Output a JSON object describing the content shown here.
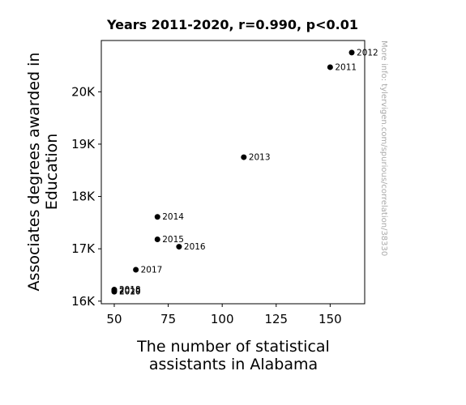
{
  "chart_data": {
    "type": "scatter",
    "title": "Years 2011-2020, r=0.990, p<0.01",
    "xlabel_lines": [
      "The number of statistical",
      "assistants in Alabama"
    ],
    "ylabel_lines": [
      "Associates degrees awarded in",
      "Education"
    ],
    "xlim": [
      44,
      166
    ],
    "ylim": [
      15950,
      20980
    ],
    "xticks": [
      {
        "value": 50,
        "label": "50"
      },
      {
        "value": 75,
        "label": "75"
      },
      {
        "value": 100,
        "label": "100"
      },
      {
        "value": 125,
        "label": "125"
      },
      {
        "value": 150,
        "label": "150"
      }
    ],
    "yticks": [
      {
        "value": 16000,
        "label": "16K"
      },
      {
        "value": 17000,
        "label": "17K"
      },
      {
        "value": 18000,
        "label": "18K"
      },
      {
        "value": 19000,
        "label": "19K"
      },
      {
        "value": 20000,
        "label": "20K"
      }
    ],
    "points": [
      {
        "label": "2011",
        "x": 150,
        "y": 20470
      },
      {
        "label": "2012",
        "x": 160,
        "y": 20750
      },
      {
        "label": "2013",
        "x": 110,
        "y": 18750
      },
      {
        "label": "2014",
        "x": 70,
        "y": 17610
      },
      {
        "label": "2015",
        "x": 70,
        "y": 17180
      },
      {
        "label": "2016",
        "x": 80,
        "y": 17040
      },
      {
        "label": "2017",
        "x": 60,
        "y": 16600
      },
      {
        "label": "2018",
        "x": 50,
        "y": 16220
      },
      {
        "label": "2019",
        "x": 50,
        "y": 16200
      },
      {
        "label": "2020",
        "x": 50,
        "y": 16180
      }
    ],
    "grid": false,
    "marker_color": "#000000",
    "watermark": "More info: tylervigen.com/spurious/correlation/38330"
  }
}
